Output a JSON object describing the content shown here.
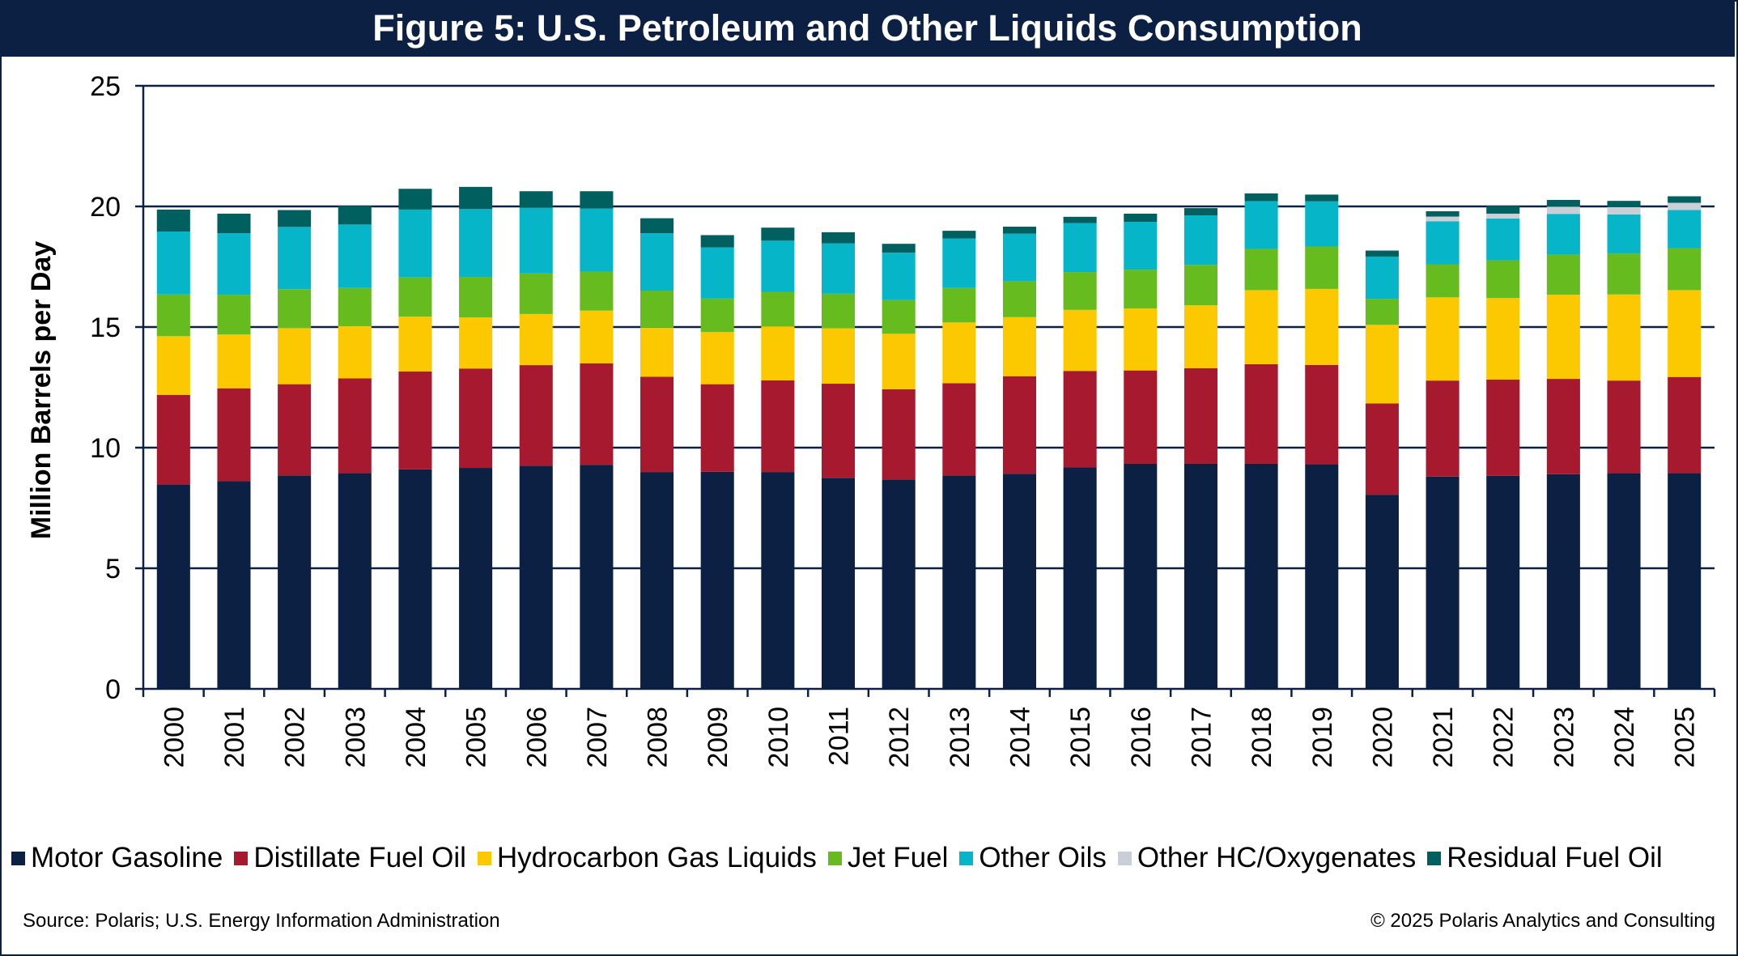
{
  "title": "Figure 5: U.S. Petroleum and Other Liquids Consumption",
  "source": "Source: Polaris; U.S. Energy Information Administration",
  "copyright": "© 2025 Polaris Analytics and Consulting",
  "chart_data": {
    "type": "bar",
    "stacked": true,
    "title": "Figure 5: U.S. Petroleum and Other Liquids Consumption",
    "xlabel": "",
    "ylabel": "Million Barrels per Day",
    "ylim": [
      0,
      25
    ],
    "yticks": [
      0,
      5,
      10,
      15,
      20,
      25
    ],
    "grid": true,
    "legend_position": "bottom",
    "categories": [
      "2000",
      "2001",
      "2002",
      "2003",
      "2004",
      "2005",
      "2006",
      "2007",
      "2008",
      "2009",
      "2010",
      "2011",
      "2012",
      "2013",
      "2014",
      "2015",
      "2016",
      "2017",
      "2018",
      "2019",
      "2020",
      "2021",
      "2022",
      "2023",
      "2024",
      "2025"
    ],
    "series": [
      {
        "name": "Motor Gasoline",
        "color": "#0b2042",
        "values": [
          8.47,
          8.61,
          8.85,
          8.94,
          9.1,
          9.16,
          9.25,
          9.29,
          8.99,
          9.0,
          8.99,
          8.75,
          8.68,
          8.84,
          8.92,
          9.18,
          9.33,
          9.33,
          9.33,
          9.31,
          8.05,
          8.8,
          8.83,
          8.9,
          8.94,
          8.94
        ]
      },
      {
        "name": "Distillate Fuel Oil",
        "color": "#a6192e",
        "values": [
          3.72,
          3.85,
          3.78,
          3.93,
          4.06,
          4.12,
          4.17,
          4.2,
          3.95,
          3.63,
          3.8,
          3.9,
          3.74,
          3.83,
          4.04,
          4.0,
          3.87,
          3.96,
          4.13,
          4.12,
          3.78,
          3.98,
          3.99,
          3.95,
          3.84,
          3.99
        ]
      },
      {
        "name": "Hydrocarbon Gas Liquids",
        "color": "#fcc800",
        "values": [
          2.43,
          2.23,
          2.33,
          2.17,
          2.27,
          2.12,
          2.12,
          2.19,
          2.03,
          2.16,
          2.24,
          2.3,
          2.3,
          2.52,
          2.45,
          2.53,
          2.57,
          2.61,
          3.07,
          3.15,
          3.26,
          3.45,
          3.38,
          3.49,
          3.57,
          3.6
        ]
      },
      {
        "name": "Jet Fuel",
        "color": "#66bb1e",
        "values": [
          1.73,
          1.65,
          1.61,
          1.58,
          1.63,
          1.68,
          1.68,
          1.62,
          1.54,
          1.39,
          1.43,
          1.43,
          1.4,
          1.43,
          1.49,
          1.57,
          1.61,
          1.68,
          1.71,
          1.76,
          1.08,
          1.37,
          1.57,
          1.66,
          1.7,
          1.74
        ]
      },
      {
        "name": "Other Oils",
        "color": "#07b5c8",
        "values": [
          2.61,
          2.55,
          2.58,
          2.63,
          2.81,
          2.81,
          2.72,
          2.61,
          2.38,
          2.12,
          2.12,
          2.09,
          1.96,
          2.05,
          1.97,
          2.03,
          1.98,
          2.05,
          1.98,
          1.87,
          1.75,
          1.78,
          1.73,
          1.69,
          1.62,
          1.58
        ]
      },
      {
        "name": "Other HC/Oxygenates",
        "color": "#c8cfd6",
        "values": [
          0,
          0,
          0,
          0,
          0,
          0,
          0,
          0,
          0,
          0,
          0,
          0,
          0,
          0,
          0,
          0,
          0,
          0,
          0,
          0,
          0,
          0.2,
          0.2,
          0.3,
          0.3,
          0.3
        ]
      },
      {
        "name": "Residual Fuel Oil",
        "color": "#00605f",
        "values": [
          0.91,
          0.81,
          0.7,
          0.77,
          0.86,
          0.92,
          0.69,
          0.72,
          0.62,
          0.51,
          0.54,
          0.46,
          0.37,
          0.32,
          0.29,
          0.26,
          0.34,
          0.3,
          0.32,
          0.28,
          0.25,
          0.22,
          0.32,
          0.28,
          0.26,
          0.27
        ]
      }
    ]
  }
}
